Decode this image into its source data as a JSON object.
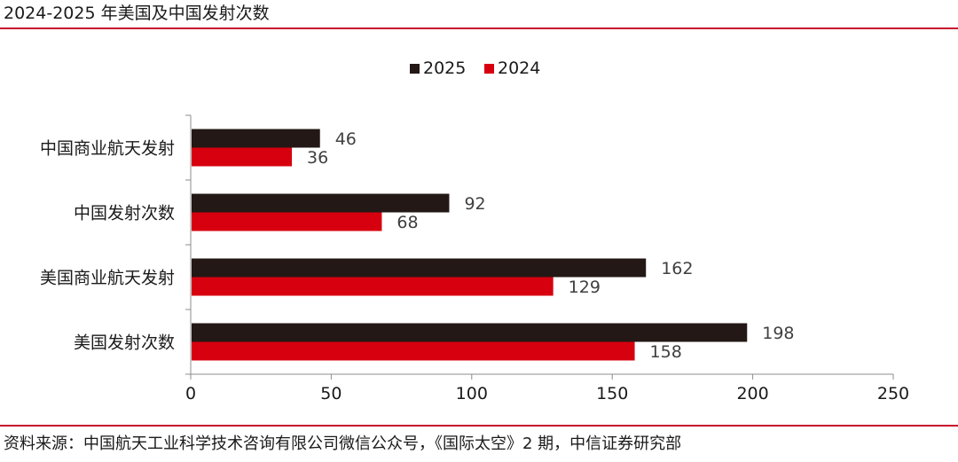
{
  "title": "2024-2025 年美国及中国发射次数",
  "source": "资料来源：中国航天工业科学技术咨询有限公司微信公众号，《国际太空》2 期，中信证券研究部",
  "chart_data": {
    "type": "bar",
    "orientation": "horizontal",
    "categories": [
      "中国商业航天发射",
      "中国发射次数",
      "美国商业航天发射",
      "美国发射次数"
    ],
    "series": [
      {
        "name": "2025",
        "color": "#231815",
        "values": [
          46,
          92,
          162,
          198
        ]
      },
      {
        "name": "2024",
        "color": "#d7000f",
        "values": [
          36,
          68,
          129,
          158
        ]
      }
    ],
    "xlim": [
      0,
      250
    ],
    "xticks": [
      "0",
      "50",
      "100",
      "150",
      "200",
      "250"
    ],
    "legend_position": "top-center",
    "grid": false
  }
}
